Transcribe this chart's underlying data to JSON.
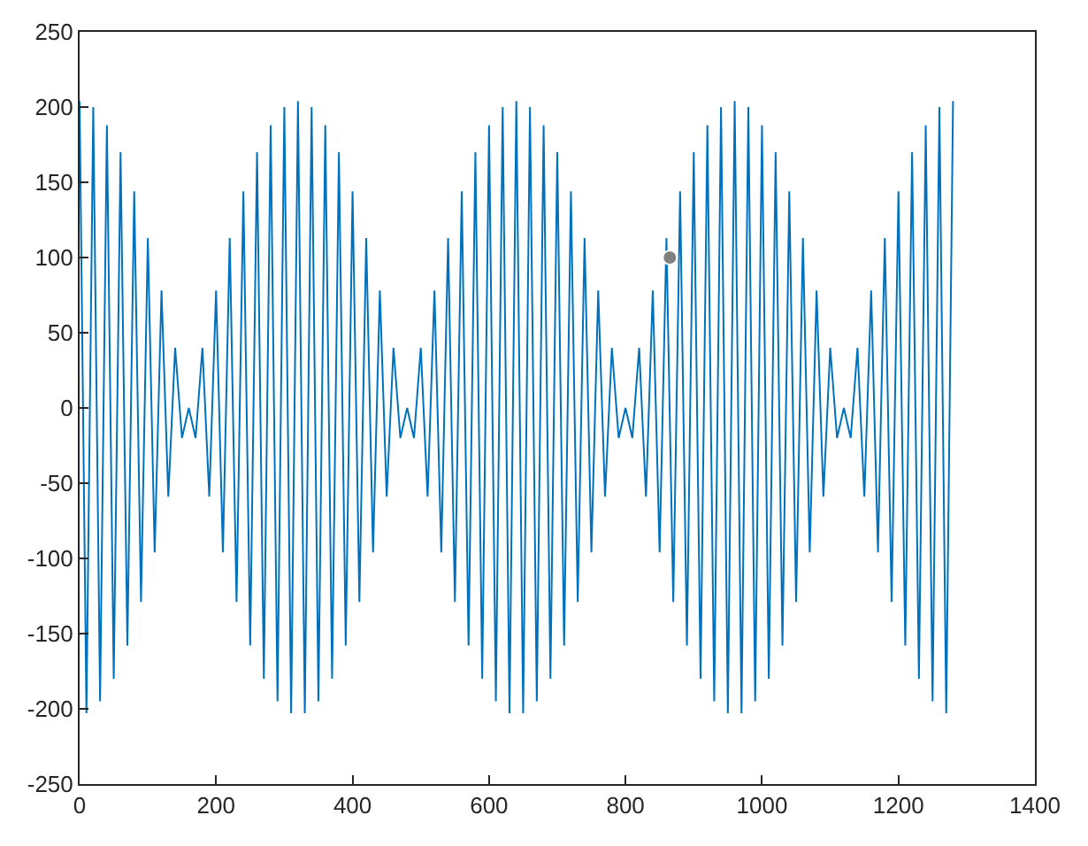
{
  "chart_data": {
    "type": "line",
    "xlim": [
      0,
      1400
    ],
    "xticks": [
      0,
      200,
      400,
      600,
      800,
      1000,
      1200,
      1400
    ],
    "ylim": [
      -250,
      250
    ],
    "yticks": [
      -250,
      -200,
      -150,
      -100,
      -50,
      0,
      50,
      100,
      150,
      200,
      250
    ],
    "grid": false,
    "series": [
      {
        "color": "#0072bd",
        "marker": "none",
        "x": [
          0,
          10,
          20,
          30,
          40,
          50,
          60,
          70,
          80,
          90,
          100,
          110,
          120,
          130,
          140,
          150,
          160,
          170,
          180,
          190,
          200,
          210,
          220,
          230,
          240,
          250,
          260,
          270,
          280,
          290,
          300,
          310,
          320,
          330,
          340,
          350,
          360,
          370,
          380,
          390,
          400,
          410,
          420,
          430,
          440,
          450,
          460,
          470,
          480,
          490,
          500,
          510,
          520,
          530,
          540,
          550,
          560,
          570,
          580,
          590,
          600,
          610,
          620,
          630,
          640,
          650,
          660,
          670,
          680,
          690,
          700,
          710,
          720,
          730,
          740,
          750,
          760,
          770,
          780,
          790,
          800,
          810,
          820,
          830,
          840,
          850,
          860,
          870,
          880,
          890,
          900,
          910,
          920,
          930,
          940,
          950,
          960,
          970,
          980,
          990,
          1000,
          1010,
          1020,
          1030,
          1040,
          1050,
          1060,
          1070,
          1080,
          1090,
          1100,
          1110,
          1120,
          1130,
          1140,
          1150,
          1160,
          1170,
          1180,
          1190,
          1200,
          1210,
          1220,
          1230,
          1240,
          1250,
          1260,
          1270,
          1280
        ],
        "values": [
          204,
          -203,
          200,
          -195,
          188,
          -180,
          170,
          -158,
          144,
          -129,
          113,
          -96,
          78,
          -59,
          40,
          -20,
          0,
          -20,
          40,
          -59,
          78,
          -96,
          113,
          -129,
          144,
          -158,
          170,
          -180,
          188,
          -195,
          200,
          -203,
          204,
          -203,
          200,
          -195,
          188,
          -180,
          170,
          -158,
          144,
          -129,
          113,
          -96,
          78,
          -59,
          40,
          -20,
          0,
          -20,
          40,
          -59,
          78,
          -96,
          113,
          -129,
          144,
          -158,
          170,
          -180,
          188,
          -195,
          200,
          -203,
          204,
          -203,
          200,
          -195,
          188,
          -180,
          170,
          -158,
          144,
          -129,
          113,
          -96,
          78,
          -59,
          40,
          -20,
          0,
          -20,
          40,
          -59,
          78,
          -96,
          113,
          -129,
          144,
          -158,
          170,
          -180,
          188,
          -195,
          200,
          -203,
          204,
          -203,
          200,
          -195,
          188,
          -180,
          170,
          -158,
          144,
          -129,
          113,
          -96,
          78,
          -59,
          40,
          -20,
          0,
          -20,
          40,
          -59,
          78,
          -96,
          113,
          -129,
          144,
          -158,
          170,
          -180,
          188,
          -195,
          200,
          -203,
          204
        ]
      },
      {
        "type": "scatter",
        "color": "#808080",
        "marker": "circle",
        "x": [
          865
        ],
        "values": [
          100
        ]
      }
    ]
  }
}
